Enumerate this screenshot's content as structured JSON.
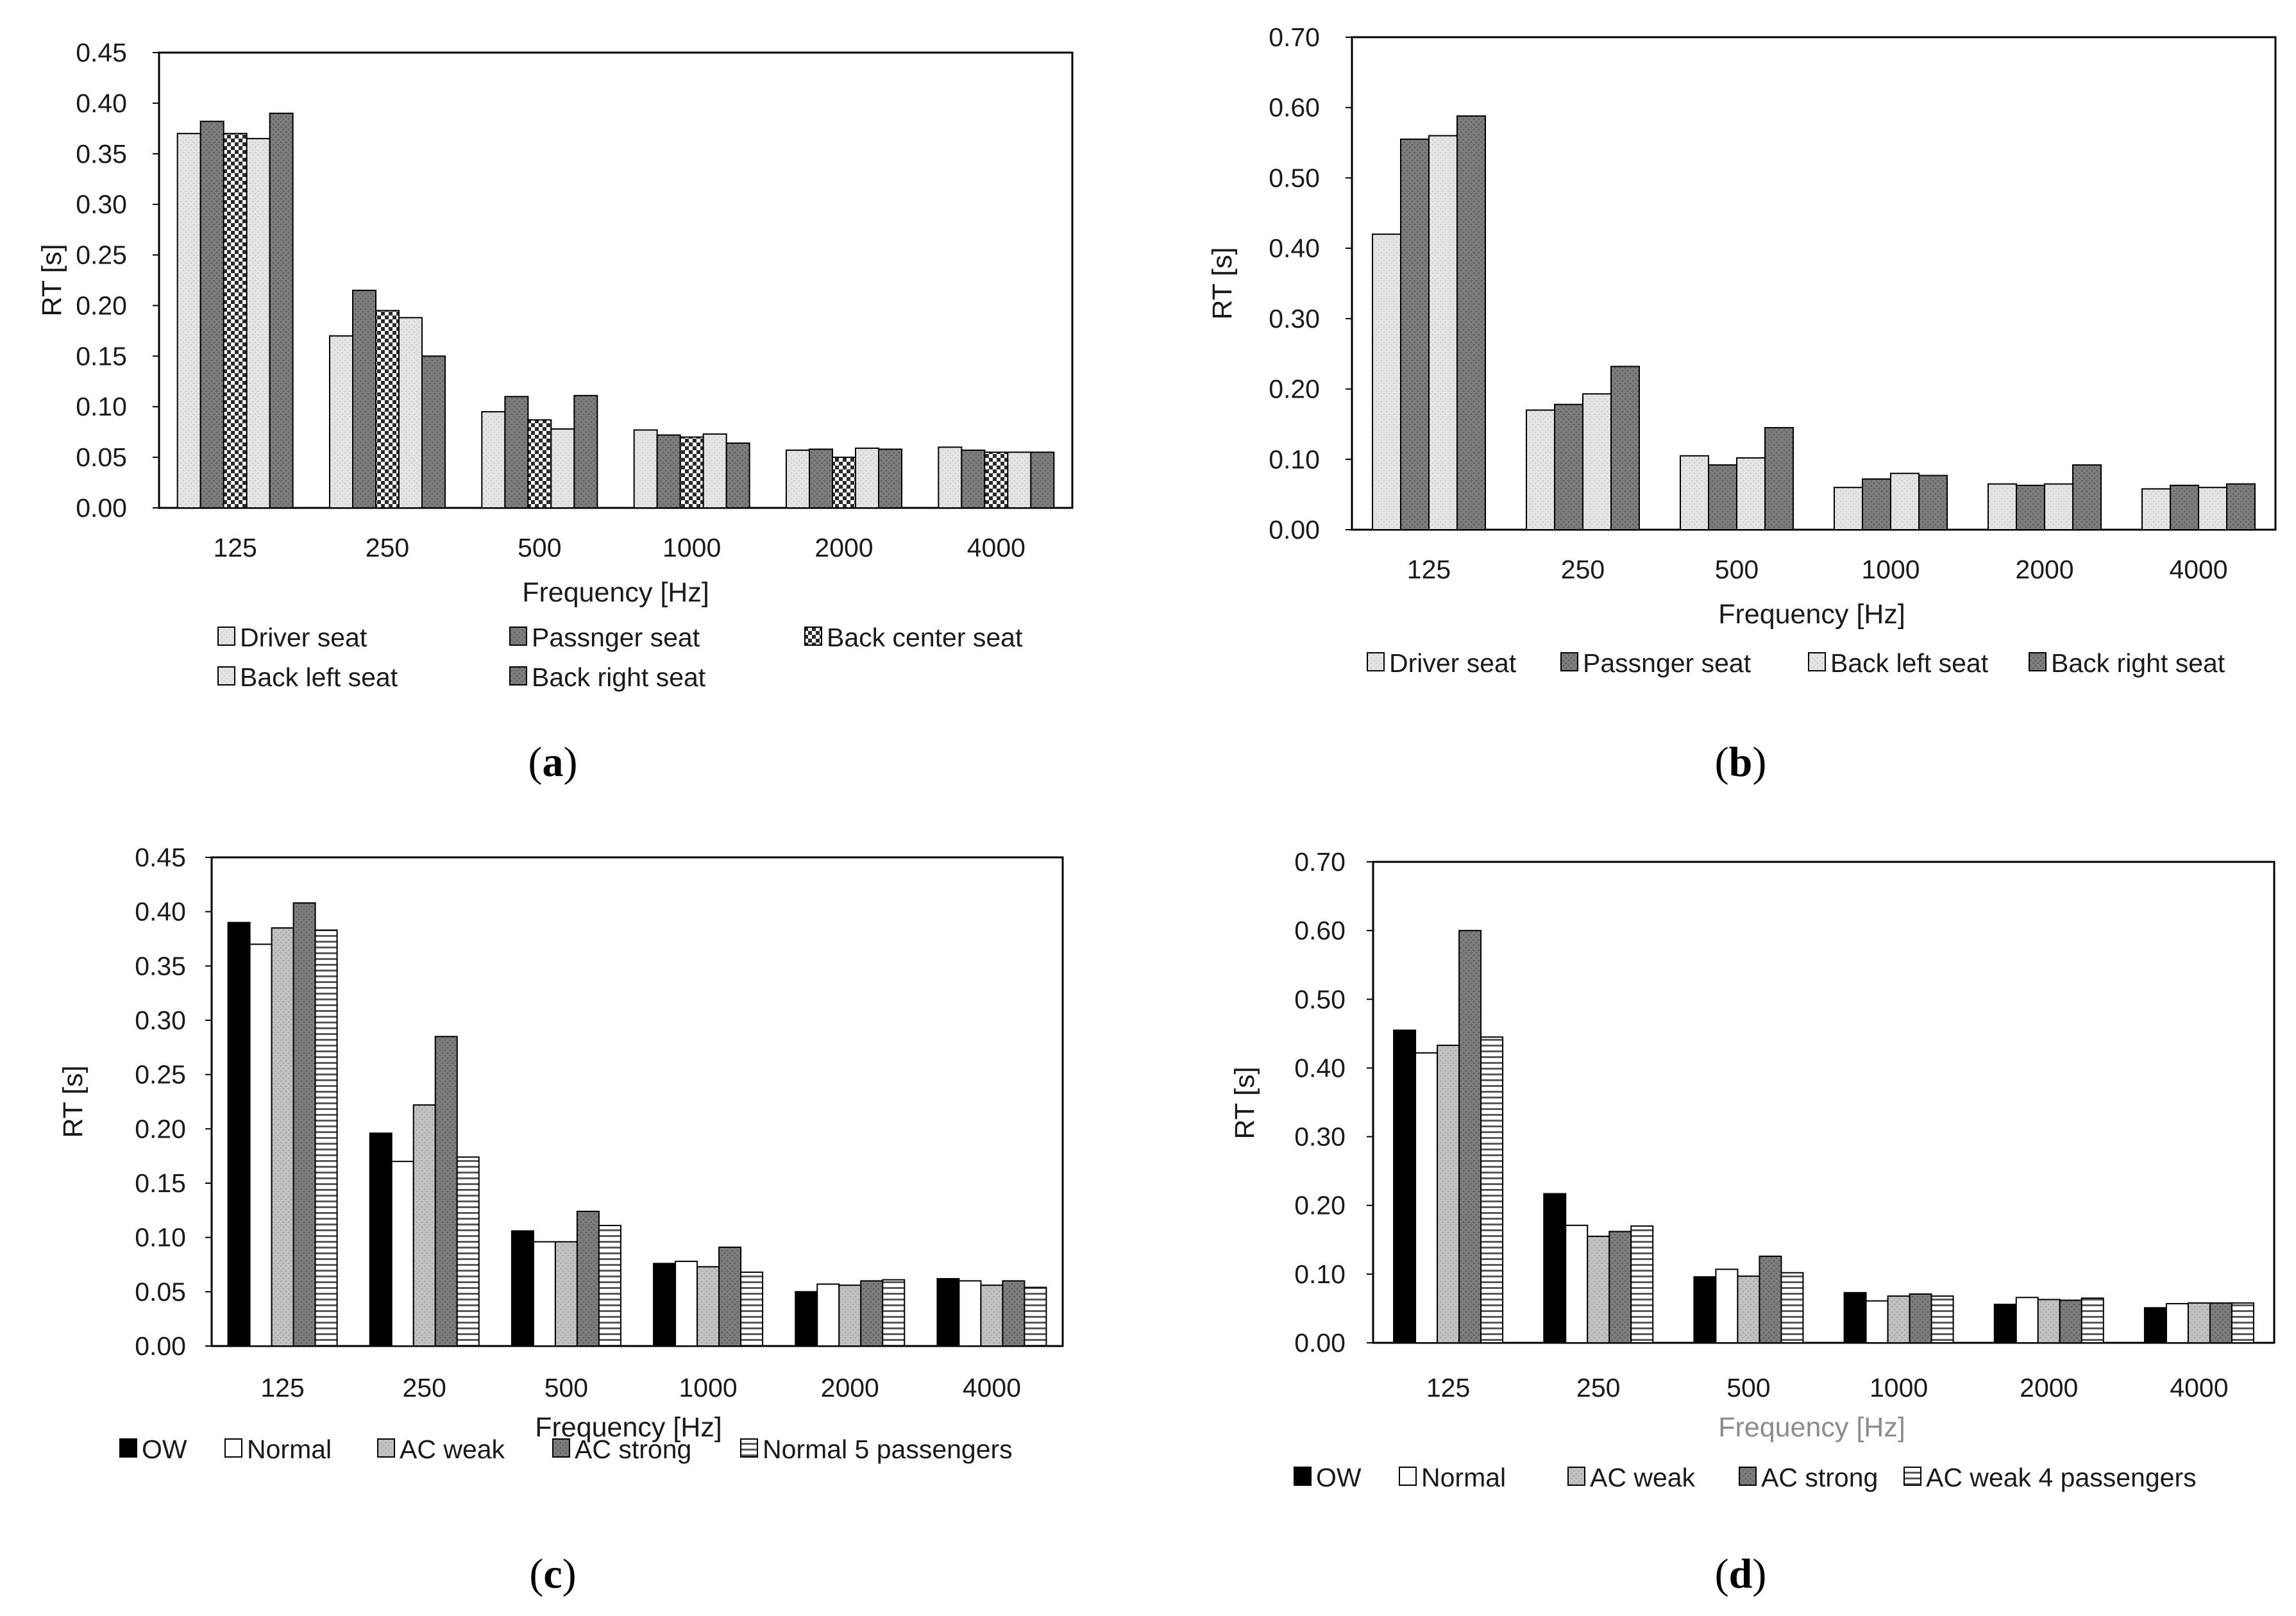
{
  "colors": {
    "light_gray": "#e2e2e2",
    "dark_gray": "#7f7f7f",
    "mid_gray": "#bdbdbd",
    "black": "#000000",
    "white": "#ffffff",
    "muted_label": "#8c8c8c"
  },
  "chart_data": [
    {
      "type": "bar",
      "caption": "a",
      "xlabel": "Frequency [Hz]",
      "ylabel": "RT [s]",
      "ylim": [
        0,
        0.45
      ],
      "yticks": [
        "0.00",
        "0.05",
        "0.10",
        "0.15",
        "0.20",
        "0.25",
        "0.30",
        "0.35",
        "0.40",
        "0.45"
      ],
      "categories": [
        "125",
        "250",
        "500",
        "1000",
        "2000",
        "4000"
      ],
      "series": [
        {
          "name": "Driver seat",
          "pattern": "light",
          "values": [
            0.37,
            0.17,
            0.095,
            0.077,
            0.057,
            0.06
          ]
        },
        {
          "name": "Passnger seat",
          "pattern": "dark",
          "values": [
            0.382,
            0.215,
            0.11,
            0.072,
            0.058,
            0.057
          ]
        },
        {
          "name": "Back center seat",
          "pattern": "check",
          "values": [
            0.37,
            0.195,
            0.087,
            0.07,
            0.05,
            0.055
          ]
        },
        {
          "name": "Back left seat",
          "pattern": "light",
          "values": [
            0.365,
            0.188,
            0.078,
            0.073,
            0.059,
            0.055
          ]
        },
        {
          "name": "Back right seat",
          "pattern": "dark",
          "values": [
            0.39,
            0.15,
            0.111,
            0.064,
            0.058,
            0.055
          ]
        }
      ]
    },
    {
      "type": "bar",
      "caption": "b",
      "xlabel": "Frequency [Hz]",
      "ylabel": "RT [s]",
      "ylim": [
        0,
        0.7
      ],
      "yticks": [
        "0.00",
        "0.10",
        "0.20",
        "0.30",
        "0.40",
        "0.50",
        "0.60",
        "0.70"
      ],
      "categories": [
        "125",
        "250",
        "500",
        "1000",
        "2000",
        "4000"
      ],
      "series": [
        {
          "name": "Driver seat",
          "pattern": "light",
          "values": [
            0.42,
            0.17,
            0.105,
            0.06,
            0.065,
            0.058
          ]
        },
        {
          "name": "Passnger seat",
          "pattern": "dark",
          "values": [
            0.555,
            0.178,
            0.092,
            0.072,
            0.063,
            0.063
          ]
        },
        {
          "name": "Back left seat",
          "pattern": "light",
          "values": [
            0.56,
            0.193,
            0.102,
            0.08,
            0.065,
            0.06
          ]
        },
        {
          "name": "Back right seat",
          "pattern": "dark",
          "values": [
            0.588,
            0.232,
            0.145,
            0.077,
            0.092,
            0.065
          ]
        }
      ]
    },
    {
      "type": "bar",
      "caption": "c",
      "xlabel": "Frequency [Hz]",
      "ylabel": "RT [s]",
      "ylim": [
        0,
        0.45
      ],
      "yticks": [
        "0.00",
        "0.05",
        "0.10",
        "0.15",
        "0.20",
        "0.25",
        "0.30",
        "0.35",
        "0.40",
        "0.45"
      ],
      "categories": [
        "125",
        "250",
        "500",
        "1000",
        "2000",
        "4000"
      ],
      "series": [
        {
          "name": "OW",
          "pattern": "black",
          "values": [
            0.39,
            0.196,
            0.106,
            0.076,
            0.05,
            0.062
          ]
        },
        {
          "name": "Normal",
          "pattern": "white",
          "values": [
            0.37,
            0.17,
            0.096,
            0.078,
            0.057,
            0.06
          ]
        },
        {
          "name": "AC weak",
          "pattern": "mid",
          "values": [
            0.385,
            0.222,
            0.096,
            0.073,
            0.056,
            0.056
          ]
        },
        {
          "name": "AC strong",
          "pattern": "dark",
          "values": [
            0.408,
            0.285,
            0.124,
            0.091,
            0.06,
            0.06
          ]
        },
        {
          "name": "Normal 5 passengers",
          "pattern": "hstripe",
          "values": [
            0.383,
            0.174,
            0.111,
            0.068,
            0.061,
            0.054
          ]
        }
      ]
    },
    {
      "type": "bar",
      "caption": "d",
      "xlabel": "Frequency [Hz]",
      "ylabel": "RT [s]",
      "ylim": [
        0,
        0.7
      ],
      "yticks": [
        "0.00",
        "0.10",
        "0.20",
        "0.30",
        "0.40",
        "0.50",
        "0.60",
        "0.70"
      ],
      "categories": [
        "125",
        "250",
        "500",
        "1000",
        "2000",
        "4000"
      ],
      "series": [
        {
          "name": "OW",
          "pattern": "black",
          "values": [
            0.455,
            0.217,
            0.096,
            0.073,
            0.056,
            0.051
          ]
        },
        {
          "name": "Normal",
          "pattern": "white",
          "values": [
            0.422,
            0.171,
            0.107,
            0.061,
            0.066,
            0.057
          ]
        },
        {
          "name": "AC weak",
          "pattern": "mid",
          "values": [
            0.433,
            0.155,
            0.097,
            0.068,
            0.063,
            0.058
          ]
        },
        {
          "name": "AC strong",
          "pattern": "dark",
          "values": [
            0.6,
            0.162,
            0.126,
            0.071,
            0.062,
            0.058
          ]
        },
        {
          "name": "AC weak 4 passengers",
          "pattern": "hstripe",
          "values": [
            0.445,
            0.17,
            0.102,
            0.068,
            0.065,
            0.058
          ]
        }
      ]
    }
  ]
}
